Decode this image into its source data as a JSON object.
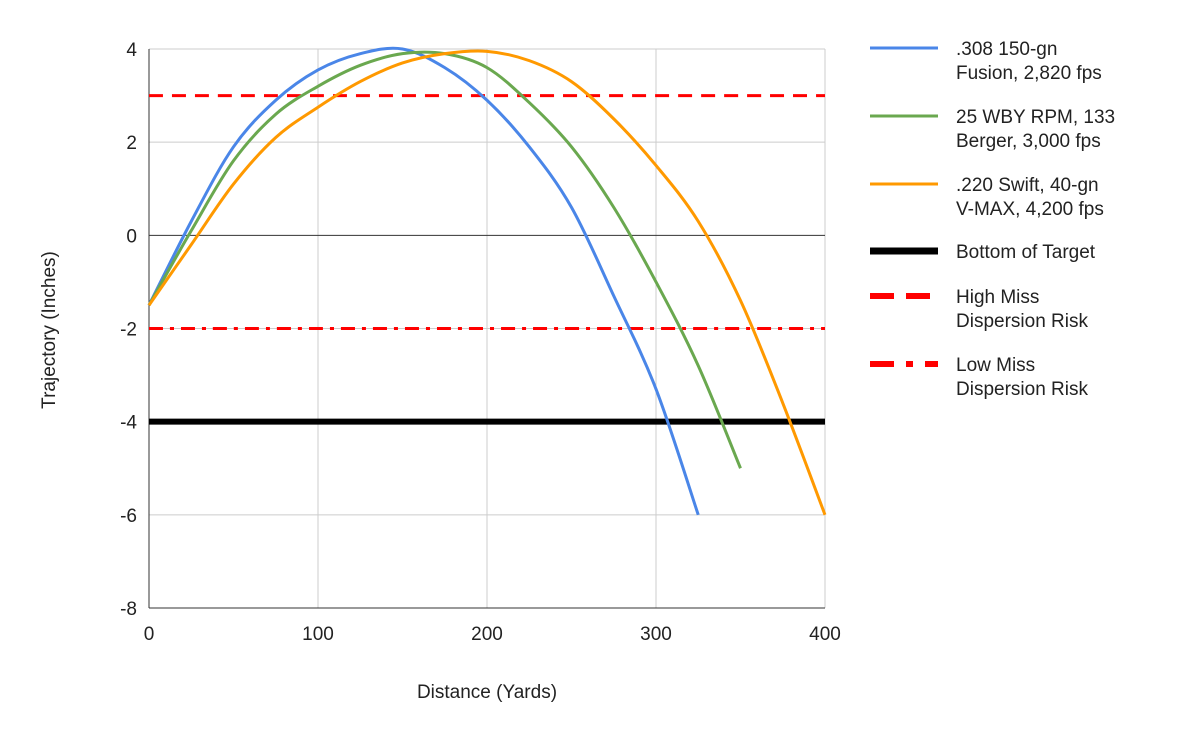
{
  "chart_data": {
    "type": "line",
    "title": "",
    "xlabel": "Distance (Yards)",
    "ylabel": "Trajectory (Inches)",
    "xlim": [
      0,
      400
    ],
    "ylim": [
      -8,
      4
    ],
    "x_ticks": [
      "0",
      "100",
      "200",
      "300",
      "400"
    ],
    "y_ticks": [
      "4",
      "2",
      "0",
      "-2",
      "-4",
      "-6",
      "-8"
    ],
    "grid": true,
    "legend_position": "right",
    "series": [
      {
        "name": ".308 150-gn Fusion, 2,820 fps",
        "legend_lines": [
          ".308 150-gn",
          "Fusion, 2,820 fps"
        ],
        "color": "#4a86e8",
        "style": "solid",
        "x": [
          0,
          25,
          50,
          75,
          100,
          125,
          150,
          175,
          200,
          225,
          250,
          275,
          300,
          325
        ],
        "y": [
          -1.5,
          0.3,
          1.9,
          2.9,
          3.55,
          3.9,
          4.0,
          3.6,
          2.9,
          1.9,
          0.6,
          -1.3,
          -3.3,
          -6.0
        ]
      },
      {
        "name": "25 WBY RPM, 133 Berger, 3,000 fps",
        "legend_lines": [
          "25 WBY RPM, 133",
          "Berger, 3,000 fps"
        ],
        "color": "#6aa84f",
        "style": "solid",
        "x": [
          0,
          25,
          50,
          75,
          100,
          125,
          150,
          175,
          200,
          225,
          250,
          275,
          300,
          325,
          350
        ],
        "y": [
          -1.5,
          0.1,
          1.6,
          2.6,
          3.2,
          3.65,
          3.9,
          3.9,
          3.6,
          2.85,
          1.9,
          0.6,
          -1.0,
          -2.8,
          -5.0
        ]
      },
      {
        "name": ".220 Swift, 40-gn V-MAX, 4,200 fps",
        "legend_lines": [
          ".220 Swift, 40-gn",
          "V-MAX, 4,200 fps"
        ],
        "color": "#ff9900",
        "style": "solid",
        "x": [
          0,
          25,
          50,
          75,
          100,
          125,
          150,
          175,
          200,
          225,
          250,
          275,
          300,
          325,
          350,
          375,
          400
        ],
        "y": [
          -1.5,
          -0.2,
          1.1,
          2.1,
          2.75,
          3.3,
          3.7,
          3.9,
          3.95,
          3.75,
          3.3,
          2.5,
          1.5,
          0.3,
          -1.4,
          -3.6,
          -6.0
        ]
      },
      {
        "name": "Bottom of Target",
        "legend_lines": [
          "Bottom of Target"
        ],
        "color": "#000000",
        "style": "thick",
        "x": [
          0,
          400
        ],
        "y": [
          -4,
          -4
        ]
      },
      {
        "name": "High Miss Dispersion Risk",
        "legend_lines": [
          "High Miss",
          "Dispersion Risk"
        ],
        "color": "#ff0000",
        "style": "dashed",
        "x": [
          0,
          400
        ],
        "y": [
          3,
          3
        ]
      },
      {
        "name": "Low Miss Dispersion Risk",
        "legend_lines": [
          "Low Miss",
          "Dispersion Risk"
        ],
        "color": "#ff0000",
        "style": "dashdot",
        "x": [
          0,
          400
        ],
        "y": [
          -2,
          -2
        ]
      }
    ]
  }
}
